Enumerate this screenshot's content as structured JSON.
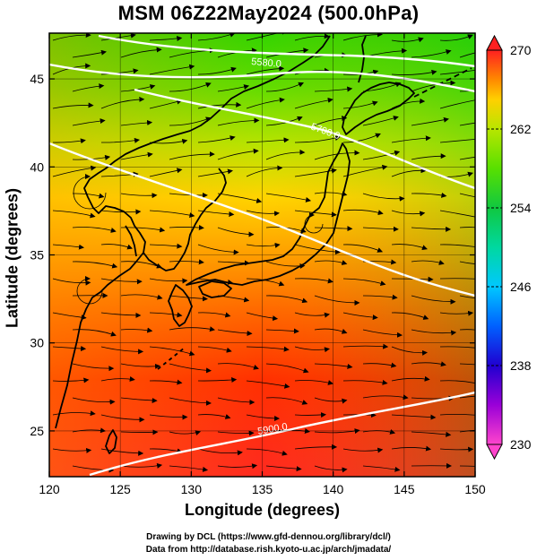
{
  "title": "MSM 06Z22May2024 (500.0hPa)",
  "xaxis": {
    "label": "Longitude (degrees)",
    "range": [
      120,
      150
    ],
    "ticks": [
      120,
      125,
      130,
      135,
      140,
      145,
      150
    ]
  },
  "yaxis": {
    "label": "Latitude  (degrees)",
    "range": [
      22.4,
      47.6
    ],
    "ticks": [
      25,
      30,
      35,
      40,
      45
    ]
  },
  "colorbar": {
    "range": [
      230,
      270
    ],
    "labels": [
      "270",
      "262",
      "254",
      "246",
      "238",
      "230"
    ],
    "stops": [
      {
        "v": 230,
        "color": "#ff44cc"
      },
      {
        "v": 234,
        "color": "#9a00d8"
      },
      {
        "v": 238,
        "color": "#2000d0"
      },
      {
        "v": 242,
        "color": "#0060ff"
      },
      {
        "v": 246,
        "color": "#00c8ff"
      },
      {
        "v": 250,
        "color": "#00d8a0"
      },
      {
        "v": 254,
        "color": "#10c840"
      },
      {
        "v": 258,
        "color": "#58e000"
      },
      {
        "v": 262,
        "color": "#b8e600"
      },
      {
        "v": 265,
        "color": "#ffd000"
      },
      {
        "v": 267,
        "color": "#ff8a00"
      },
      {
        "v": 270,
        "color": "#ff2020"
      }
    ]
  },
  "contours": [
    {
      "label": "5900.0"
    },
    {
      "label": "5700.0"
    },
    {
      "label": "5580.0"
    }
  ],
  "credits": [
    "Drawing by DCL (https://www.gfd-dennou.org/library/dcl/)",
    "Data from http://database.rish.kyoto-u.ac.jp/arch/jmadata/"
  ]
}
